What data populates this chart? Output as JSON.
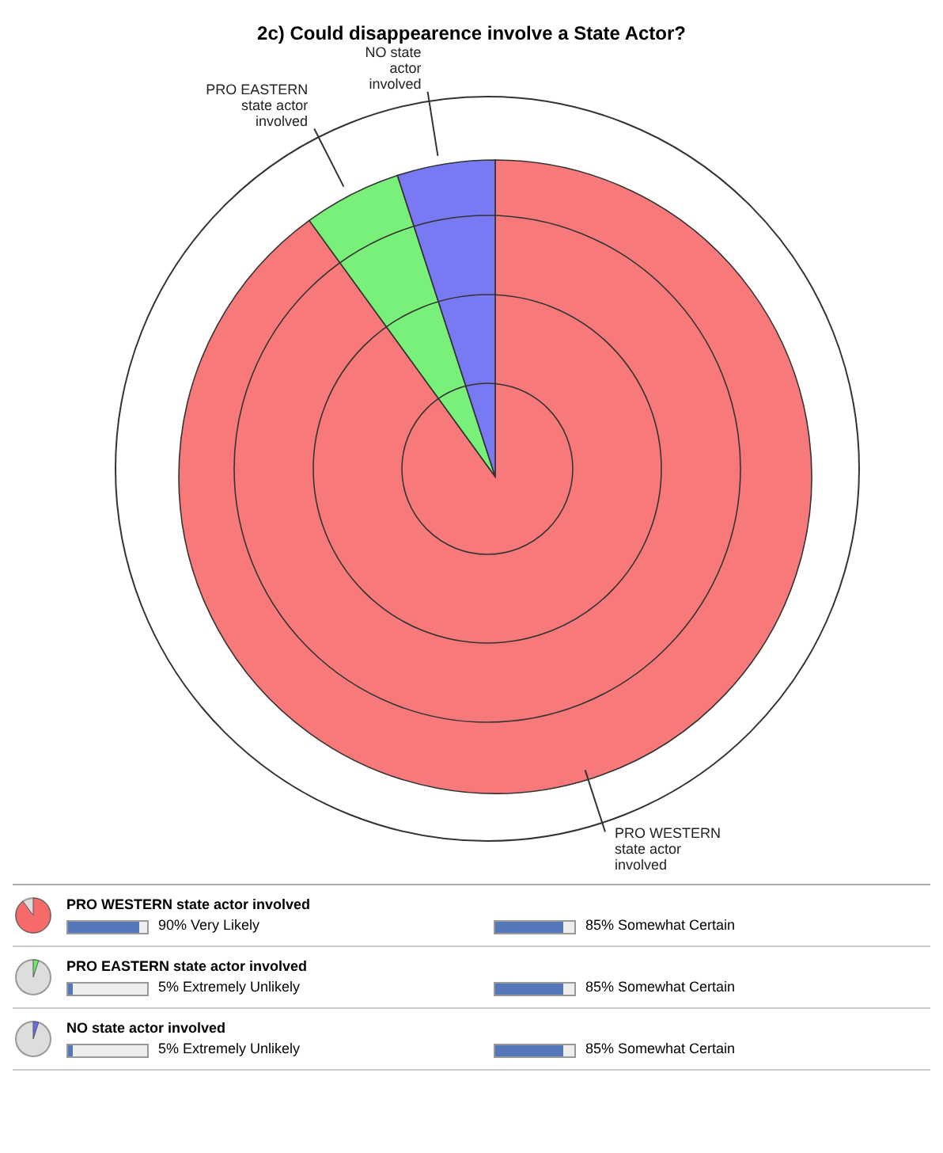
{
  "chart_data": {
    "type": "pie",
    "title": "2c) Could disappearence involve a State Actor?",
    "categories": [
      "PRO WESTERN state actor involved",
      "PRO EASTERN state actor involved",
      "NO state actor involved"
    ],
    "values": [
      90,
      5,
      5
    ],
    "colors": [
      "#f76a6a",
      "#6aee6a",
      "#6a6af2"
    ],
    "legend": "bottom",
    "annotations": [
      "90%  Very Likely",
      "85%  Somewhat Certain",
      "5%  Extremely Unlikely",
      "85%  Somewhat Certain",
      "5%  Extremely Unlikely",
      "85%  Somewhat Certain"
    ]
  }
}
